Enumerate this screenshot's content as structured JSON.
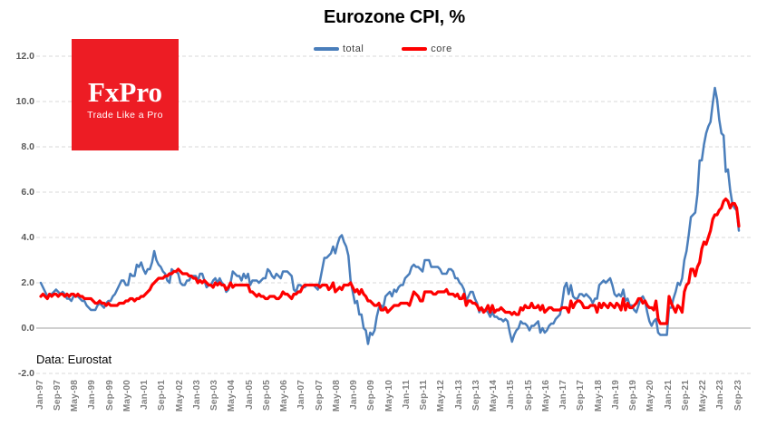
{
  "title": "Eurozone CPI, %",
  "source_note": "Data: Eurostat",
  "logo": {
    "brand": "FxPro",
    "tagline": "Trade Like a Pro",
    "bg_color": "#ed1c24",
    "text_color": "#ffffff"
  },
  "legend": {
    "items": [
      {
        "label": "total",
        "color": "#4a7ebb"
      },
      {
        "label": "core",
        "color": "#fe0000"
      }
    ]
  },
  "colors": {
    "gridline": "#d9d9d9",
    "zero_line": "#b3b3b3",
    "y_tick_text": "#595959",
    "x_tick_text": "#7f7f7f",
    "title_text": "#000000"
  },
  "chart_data": {
    "type": "line",
    "title": "Eurozone CPI, %",
    "frequency": "monthly",
    "x_range": [
      "Jan-1997",
      "Sep-2023"
    ],
    "ylim": [
      -2.2,
      12.3
    ],
    "grid": "horizontal-dashed",
    "legend_position": "top-center",
    "x_tick_labels": [
      "Jan-97",
      "Sep-97",
      "May-98",
      "Jan-99",
      "Sep-99",
      "May-00",
      "Jan-01",
      "Sep-01",
      "May-02",
      "Jan-03",
      "Sep-03",
      "May-04",
      "Jan-05",
      "Sep-05",
      "May-06",
      "Jan-07",
      "Sep-07",
      "May-08",
      "Jan-09",
      "Sep-09",
      "May-10",
      "Jan-11",
      "Sep-11",
      "May-12",
      "Jan-13",
      "Sep-13",
      "May-14",
      "Jan-15",
      "Sep-15",
      "May-16",
      "Jan-17",
      "Sep-17",
      "May-18",
      "Jan-19",
      "Sep-19",
      "May-20",
      "Jan-21",
      "Sep-21",
      "May-22",
      "Jan-23",
      "Sep-23"
    ],
    "x_tick_step_months": 8,
    "y_ticks": [
      {
        "label": "12.0",
        "value": 12
      },
      {
        "label": "10.0",
        "value": 10
      },
      {
        "label": "8.0",
        "value": 8
      },
      {
        "label": "6.0",
        "value": 6
      },
      {
        "label": "4.0",
        "value": 4
      },
      {
        "label": "2.0",
        "value": 2
      },
      {
        "label": "0.0",
        "value": 0
      },
      {
        "label": "-2.0",
        "value": -2
      }
    ],
    "series": [
      {
        "name": "total",
        "color": "#4a7ebb",
        "values": [
          2.0,
          1.8,
          1.6,
          1.4,
          1.5,
          1.5,
          1.6,
          1.7,
          1.6,
          1.5,
          1.6,
          1.5,
          1.3,
          1.3,
          1.2,
          1.4,
          1.4,
          1.4,
          1.3,
          1.2,
          1.2,
          1.0,
          0.9,
          0.8,
          0.8,
          0.8,
          1.0,
          1.1,
          1.0,
          0.9,
          1.1,
          1.2,
          1.2,
          1.4,
          1.5,
          1.7,
          1.9,
          2.1,
          2.1,
          1.9,
          1.9,
          2.4,
          2.3,
          2.3,
          2.8,
          2.7,
          2.9,
          2.6,
          2.4,
          2.6,
          2.6,
          2.9,
          3.4,
          3.0,
          2.8,
          2.7,
          2.5,
          2.4,
          2.1,
          2.0,
          2.6,
          2.5,
          2.5,
          2.4,
          2.0,
          1.9,
          1.9,
          2.1,
          2.1,
          2.3,
          2.3,
          2.3,
          2.1,
          2.4,
          2.4,
          2.1,
          1.8,
          1.9,
          1.9,
          2.1,
          2.2,
          2.0,
          2.2,
          2.0,
          1.9,
          1.6,
          1.7,
          2.0,
          2.5,
          2.4,
          2.3,
          2.3,
          2.1,
          2.4,
          2.2,
          2.4,
          1.9,
          2.1,
          2.1,
          2.1,
          2.0,
          2.1,
          2.2,
          2.2,
          2.6,
          2.5,
          2.3,
          2.2,
          2.4,
          2.3,
          2.2,
          2.5,
          2.5,
          2.5,
          2.4,
          2.3,
          1.7,
          1.6,
          1.9,
          1.9,
          1.8,
          1.8,
          1.9,
          1.9,
          1.9,
          1.9,
          1.8,
          1.7,
          2.1,
          2.6,
          3.1,
          3.1,
          3.2,
          3.3,
          3.6,
          3.3,
          3.7,
          4.0,
          4.1,
          3.8,
          3.6,
          3.2,
          2.1,
          1.6,
          1.1,
          1.2,
          0.6,
          0.6,
          0.0,
          -0.1,
          -0.7,
          -0.2,
          -0.3,
          -0.1,
          0.5,
          0.9,
          1.0,
          0.9,
          1.4,
          1.5,
          1.6,
          1.4,
          1.7,
          1.6,
          1.8,
          1.9,
          1.9,
          2.2,
          2.3,
          2.4,
          2.7,
          2.8,
          2.7,
          2.7,
          2.6,
          2.5,
          3.0,
          3.0,
          3.0,
          2.7,
          2.7,
          2.7,
          2.7,
          2.6,
          2.4,
          2.4,
          2.4,
          2.6,
          2.6,
          2.5,
          2.2,
          2.2,
          2.0,
          1.9,
          1.7,
          1.2,
          1.4,
          1.6,
          1.6,
          1.3,
          1.1,
          0.7,
          0.9,
          0.8,
          0.8,
          0.7,
          0.5,
          0.7,
          0.5,
          0.5,
          0.4,
          0.4,
          0.3,
          0.4,
          0.3,
          -0.2,
          -0.6,
          -0.3,
          -0.1,
          0.0,
          0.3,
          0.2,
          0.2,
          0.1,
          -0.1,
          0.1,
          0.1,
          0.2,
          0.3,
          -0.2,
          0.0,
          -0.2,
          -0.1,
          0.1,
          0.2,
          0.2,
          0.4,
          0.5,
          0.6,
          1.1,
          1.8,
          2.0,
          1.5,
          1.9,
          1.4,
          1.3,
          1.3,
          1.5,
          1.5,
          1.4,
          1.5,
          1.4,
          1.3,
          1.1,
          1.3,
          1.3,
          1.9,
          2.0,
          2.1,
          2.0,
          2.1,
          2.2,
          1.9,
          1.5,
          1.4,
          1.5,
          1.4,
          1.7,
          1.2,
          1.3,
          1.0,
          1.0,
          0.8,
          0.7,
          1.0,
          1.3,
          1.4,
          1.2,
          0.7,
          0.3,
          0.1,
          0.3,
          0.4,
          -0.2,
          -0.3,
          -0.3,
          -0.3,
          -0.3,
          0.9,
          0.9,
          1.3,
          1.6,
          2.0,
          1.9,
          2.2,
          3.0,
          3.4,
          4.1,
          4.9,
          5.0,
          5.1,
          5.9,
          7.4,
          7.4,
          8.1,
          8.6,
          8.9,
          9.1,
          9.9,
          10.6,
          10.1,
          9.2,
          8.6,
          8.5,
          6.9,
          7.0,
          6.1,
          5.5,
          5.3,
          5.2,
          4.3
        ]
      },
      {
        "name": "core",
        "color": "#fe0000",
        "values": [
          1.4,
          1.5,
          1.4,
          1.3,
          1.5,
          1.4,
          1.5,
          1.5,
          1.4,
          1.5,
          1.5,
          1.4,
          1.5,
          1.4,
          1.5,
          1.5,
          1.4,
          1.5,
          1.4,
          1.4,
          1.3,
          1.3,
          1.3,
          1.3,
          1.2,
          1.1,
          1.1,
          1.2,
          1.1,
          1.1,
          1.0,
          1.1,
          1.0,
          1.0,
          1.0,
          1.0,
          1.1,
          1.1,
          1.1,
          1.2,
          1.2,
          1.3,
          1.3,
          1.2,
          1.3,
          1.3,
          1.4,
          1.4,
          1.5,
          1.6,
          1.7,
          1.9,
          2.0,
          2.1,
          2.2,
          2.2,
          2.2,
          2.3,
          2.3,
          2.4,
          2.4,
          2.5,
          2.5,
          2.6,
          2.5,
          2.4,
          2.4,
          2.4,
          2.3,
          2.3,
          2.2,
          2.2,
          2.0,
          2.1,
          2.0,
          2.1,
          2.0,
          1.9,
          1.9,
          1.8,
          2.0,
          1.9,
          2.0,
          1.9,
          1.9,
          1.7,
          1.8,
          2.0,
          1.8,
          1.9,
          1.9,
          1.9,
          1.9,
          1.9,
          1.9,
          1.9,
          1.6,
          1.6,
          1.5,
          1.4,
          1.5,
          1.4,
          1.4,
          1.3,
          1.3,
          1.4,
          1.4,
          1.4,
          1.3,
          1.3,
          1.4,
          1.6,
          1.5,
          1.5,
          1.4,
          1.3,
          1.5,
          1.5,
          1.6,
          1.6,
          1.8,
          1.9,
          1.9,
          1.9,
          1.9,
          1.9,
          1.9,
          1.9,
          1.8,
          1.9,
          1.9,
          1.9,
          1.7,
          1.8,
          2.0,
          1.6,
          1.7,
          1.8,
          1.7,
          1.9,
          1.9,
          1.9,
          2.0,
          1.8,
          1.6,
          1.7,
          1.5,
          1.7,
          1.5,
          1.4,
          1.2,
          1.2,
          1.1,
          1.0,
          1.0,
          1.1,
          0.8,
          0.8,
          0.9,
          0.7,
          0.8,
          0.9,
          1.0,
          1.0,
          1.0,
          1.1,
          1.1,
          1.1,
          1.1,
          1.0,
          1.3,
          1.6,
          1.5,
          1.4,
          1.2,
          1.2,
          1.6,
          1.6,
          1.6,
          1.6,
          1.5,
          1.5,
          1.6,
          1.6,
          1.6,
          1.6,
          1.7,
          1.5,
          1.5,
          1.5,
          1.4,
          1.5,
          1.3,
          1.3,
          1.5,
          1.0,
          1.2,
          1.2,
          1.1,
          1.1,
          1.0,
          0.8,
          0.9,
          0.7,
          0.8,
          1.0,
          0.7,
          1.0,
          0.7,
          0.8,
          0.8,
          0.9,
          0.8,
          0.7,
          0.7,
          0.7,
          0.6,
          0.7,
          0.6,
          0.6,
          0.9,
          0.8,
          1.0,
          0.9,
          0.9,
          1.1,
          0.9,
          0.9,
          1.0,
          0.8,
          1.0,
          0.7,
          0.8,
          0.9,
          0.9,
          0.8,
          0.8,
          0.8,
          0.8,
          0.9,
          0.9,
          0.9,
          0.7,
          1.2,
          0.9,
          1.1,
          1.2,
          1.2,
          1.1,
          0.9,
          0.9,
          0.9,
          1.0,
          1.0,
          1.0,
          0.7,
          1.1,
          0.9,
          1.1,
          1.0,
          0.9,
          1.1,
          1.0,
          0.9,
          1.1,
          1.0,
          0.8,
          1.3,
          0.8,
          1.1,
          0.9,
          0.9,
          1.0,
          1.1,
          1.3,
          1.3,
          1.1,
          1.2,
          1.0,
          0.9,
          0.9,
          0.8,
          1.2,
          0.4,
          0.2,
          0.2,
          0.2,
          0.2,
          1.4,
          1.1,
          0.9,
          0.7,
          1.0,
          0.9,
          0.7,
          1.6,
          1.9,
          2.0,
          2.6,
          2.6,
          2.3,
          2.7,
          2.9,
          3.5,
          3.8,
          3.7,
          4.0,
          4.3,
          4.8,
          5.0,
          5.0,
          5.2,
          5.3,
          5.6,
          5.7,
          5.6,
          5.3,
          5.5,
          5.5,
          5.3,
          4.5
        ]
      }
    ]
  }
}
